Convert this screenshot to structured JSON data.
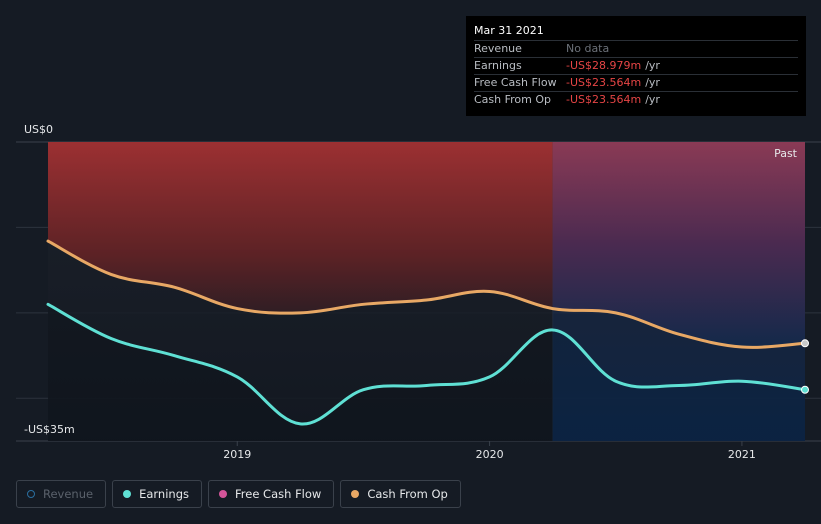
{
  "tooltip": {
    "date": "Mar 31 2021",
    "rows": [
      {
        "label": "Revenue",
        "value": "No data",
        "unit": ""
      },
      {
        "label": "Earnings",
        "value": "-US$28.979m",
        "unit": "/yr"
      },
      {
        "label": "Free Cash Flow",
        "value": "-US$23.564m",
        "unit": "/yr"
      },
      {
        "label": "Cash From Op",
        "value": "-US$23.564m",
        "unit": "/yr"
      }
    ]
  },
  "legend": {
    "items": [
      {
        "label": "Revenue",
        "color": "#2a6fa0",
        "enabled": false
      },
      {
        "label": "Earnings",
        "color": "#5fe0d4",
        "enabled": true
      },
      {
        "label": "Free Cash Flow",
        "color": "#d4559a",
        "enabled": true
      },
      {
        "label": "Cash From Op",
        "color": "#e8a865",
        "enabled": true
      }
    ]
  },
  "chart_data": {
    "type": "line",
    "title": "",
    "y_top_label": "US$0",
    "y_bottom_label": "-US$35m",
    "past_label": "Past",
    "ylim": [
      -35,
      0
    ],
    "xlim": [
      2018.25,
      2021.25
    ],
    "forecast_start": 2020.25,
    "x_ticks": [
      {
        "value": 2019,
        "label": "2019"
      },
      {
        "value": 2020,
        "label": "2020"
      },
      {
        "value": 2021,
        "label": "2021"
      }
    ],
    "series": [
      {
        "name": "Earnings",
        "color": "#5fe0d4",
        "x": [
          2018.25,
          2018.5,
          2018.75,
          2019.0,
          2019.25,
          2019.5,
          2019.75,
          2020.0,
          2020.25,
          2020.5,
          2020.75,
          2021.0,
          2021.25
        ],
        "values": [
          -19,
          -23,
          -25,
          -27.5,
          -33,
          -29,
          -28.5,
          -27.5,
          -22,
          -28,
          -28.5,
          -28,
          -29
        ]
      },
      {
        "name": "Cash From Op",
        "color": "#e8a865",
        "x": [
          2018.25,
          2018.5,
          2018.75,
          2019.0,
          2019.25,
          2019.5,
          2019.75,
          2020.0,
          2020.25,
          2020.5,
          2020.75,
          2021.0,
          2021.25
        ],
        "values": [
          -11.6,
          -15.5,
          -17,
          -19.5,
          -20,
          -19,
          -18.5,
          -17.5,
          -19.5,
          -20,
          -22.5,
          -24,
          -23.564
        ]
      }
    ]
  }
}
